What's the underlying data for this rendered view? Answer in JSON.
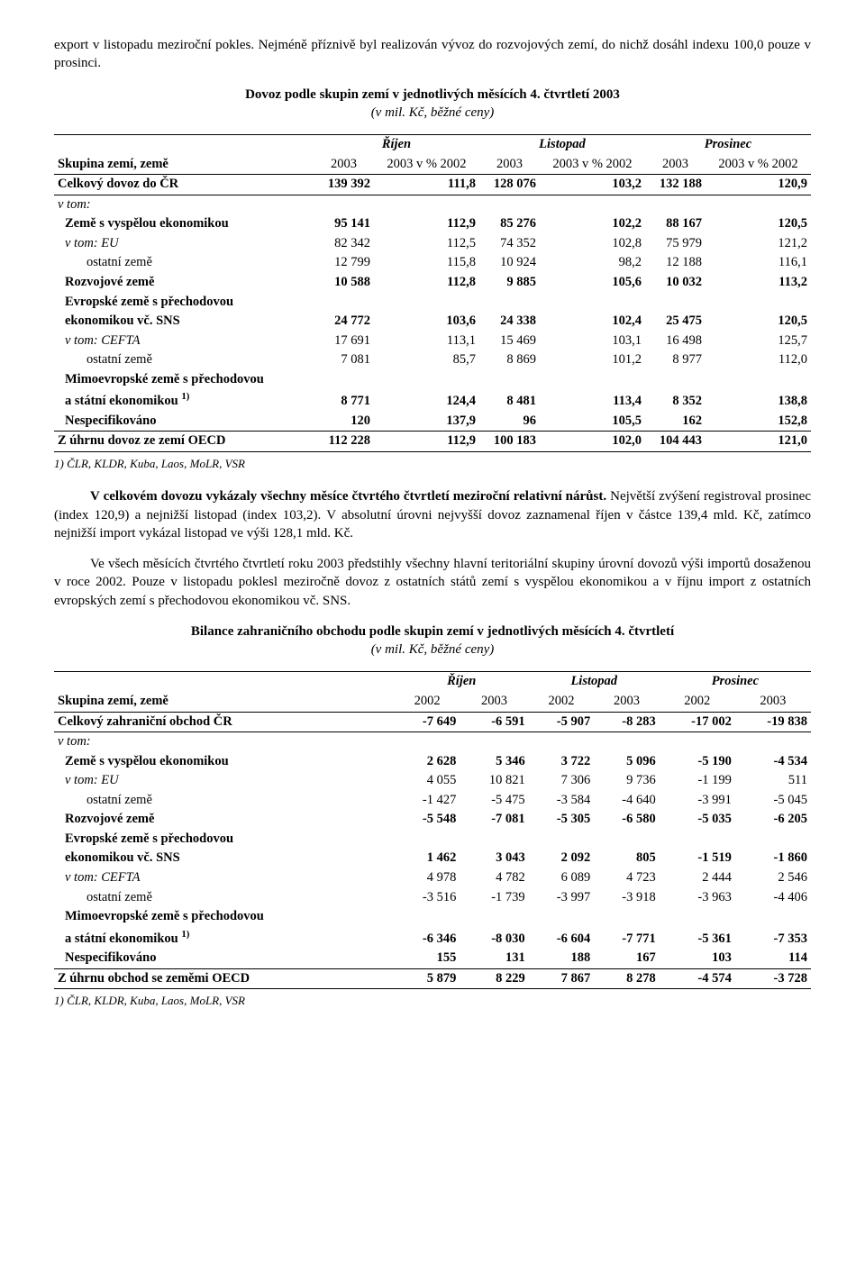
{
  "p1": "export v listopadu meziroční pokles. Nejméně příznivě byl realizován vývoz do rozvojových zemí, do nichž dosáhl indexu 100,0 pouze v prosinci.",
  "t1_title": "Dovoz podle skupin zemí v jednotlivých měsících 4. čtvrtletí 2003",
  "units_note": "(v mil. Kč, běžné ceny)",
  "months": {
    "oct": "Říjen",
    "nov": "Listopad",
    "dec": "Prosinec"
  },
  "colhead": {
    "group": "Skupina zemí, země",
    "y": "2003",
    "pct": "2003 v % 2002",
    "y2002": "2002"
  },
  "t1": {
    "total": {
      "label": "Celkový dovoz do ČR",
      "oct_v": "139 392",
      "oct_p": "111,8",
      "nov_v": "128 076",
      "nov_p": "103,2",
      "dec_v": "132 188",
      "dec_p": "120,9"
    },
    "vtom": "v tom:",
    "vysp": {
      "label": "Země s vyspělou ekonomikou",
      "oct_v": "95 141",
      "oct_p": "112,9",
      "nov_v": "85 276",
      "nov_p": "102,2",
      "dec_v": "88 167",
      "dec_p": "120,5"
    },
    "eu": {
      "label": "v tom: EU",
      "oct_v": "82 342",
      "oct_p": "112,5",
      "nov_v": "74 352",
      "nov_p": "102,8",
      "dec_v": "75 979",
      "dec_p": "121,2"
    },
    "ost1": {
      "label": "ostatní země",
      "oct_v": "12 799",
      "oct_p": "115,8",
      "nov_v": "10 924",
      "nov_p": "98,2",
      "dec_v": "12 188",
      "dec_p": "116,1"
    },
    "rozv": {
      "label": "Rozvojové země",
      "oct_v": "10 588",
      "oct_p": "112,8",
      "nov_v": "9 885",
      "nov_p": "105,6",
      "dec_v": "10 032",
      "dec_p": "113,2"
    },
    "evr_l1": "Evropské země s přechodovou",
    "evr": {
      "label": "ekonomikou vč. SNS",
      "oct_v": "24 772",
      "oct_p": "103,6",
      "nov_v": "24 338",
      "nov_p": "102,4",
      "dec_v": "25 475",
      "dec_p": "120,5"
    },
    "cefta": {
      "label": "v tom: CEFTA",
      "oct_v": "17 691",
      "oct_p": "113,1",
      "nov_v": "15 469",
      "nov_p": "103,1",
      "dec_v": "16 498",
      "dec_p": "125,7"
    },
    "ost2": {
      "label": "ostatní země",
      "oct_v": "7 081",
      "oct_p": "85,7",
      "nov_v": "8 869",
      "nov_p": "101,2",
      "dec_v": "8 977",
      "dec_p": "112,0"
    },
    "mimo_l1": "Mimoevropské země s přechodovou",
    "mimo": {
      "label": "a státní ekonomikou ",
      "sup": "1)",
      "oct_v": "8 771",
      "oct_p": "124,4",
      "nov_v": "8 481",
      "nov_p": "113,4",
      "dec_v": "8 352",
      "dec_p": "138,8"
    },
    "nespec": {
      "label": "Nespecifikováno",
      "oct_v": "120",
      "oct_p": "137,9",
      "nov_v": "96",
      "nov_p": "105,5",
      "dec_v": "162",
      "dec_p": "152,8"
    },
    "oecd": {
      "label": "Z úhrnu dovoz ze zemí OECD",
      "oct_v": "112 228",
      "oct_p": "112,9",
      "nov_v": "100 183",
      "nov_p": "102,0",
      "dec_v": "104 443",
      "dec_p": "121,0"
    }
  },
  "footnote1": "1) ČLR, KLDR, Kuba, Laos, MoLR, VSR",
  "p2a": "V celkovém dovozu vykázaly všechny měsíce čtvrtého čtvrtletí meziroční relativní nárůst.",
  "p2b": " Největší zvýšení registroval prosinec (index 120,9) a nejnižší listopad (index 103,2). V absolutní úrovni nejvyšší dovoz zaznamenal říjen v částce 139,4 mld. Kč, zatímco nejnižší import vykázal listopad ve výši 128,1 mld. Kč.",
  "p3": "Ve všech měsících čtvrtého čtvrtletí roku 2003 předstihly všechny hlavní teritoriální skupiny úrovní dovozů výši importů dosaženou v roce 2002. Pouze v listopadu poklesl meziročně dovoz z ostatních států zemí s vyspělou ekonomikou a v říjnu import z ostatních evropských zemí s přechodovou ekonomikou vč. SNS.",
  "t2_title": "Bilance zahraničního obchodu podle skupin zemí v jednotlivých měsících 4. čtvrtletí",
  "t2": {
    "total": {
      "label": "Celkový zahraniční obchod ČR",
      "o02": "-7 649",
      "o03": "-6 591",
      "n02": "-5 907",
      "n03": "-8 283",
      "d02": "-17 002",
      "d03": "-19 838"
    },
    "vysp": {
      "label": "Země s vyspělou ekonomikou",
      "o02": "2 628",
      "o03": "5 346",
      "n02": "3 722",
      "n03": "5 096",
      "d02": "-5 190",
      "d03": "-4 534"
    },
    "eu": {
      "label": "v tom: EU",
      "o02": "4 055",
      "o03": "10 821",
      "n02": "7 306",
      "n03": "9 736",
      "d02": "-1 199",
      "d03": "511"
    },
    "ost1": {
      "label": "ostatní země",
      "o02": "-1 427",
      "o03": "-5 475",
      "n02": "-3 584",
      "n03": "-4 640",
      "d02": "-3 991",
      "d03": "-5 045"
    },
    "rozv": {
      "label": "Rozvojové země",
      "o02": "-5 548",
      "o03": "-7 081",
      "n02": "-5 305",
      "n03": "-6 580",
      "d02": "-5 035",
      "d03": "-6 205"
    },
    "evr": {
      "label": "ekonomikou vč. SNS",
      "o02": "1 462",
      "o03": "3 043",
      "n02": "2 092",
      "n03": "805",
      "d02": "-1 519",
      "d03": "-1 860"
    },
    "cefta": {
      "label": "v tom: CEFTA",
      "o02": "4 978",
      "o03": "4 782",
      "n02": "6 089",
      "n03": "4 723",
      "d02": "2 444",
      "d03": "2 546"
    },
    "ost2": {
      "label": "ostatní země",
      "o02": "-3 516",
      "o03": "-1 739",
      "n02": "-3 997",
      "n03": "-3 918",
      "d02": "-3 963",
      "d03": "-4 406"
    },
    "mimo": {
      "label": "a státní ekonomikou ",
      "sup": "1)",
      "o02": "-6 346",
      "o03": "-8 030",
      "n02": "-6 604",
      "n03": "-7 771",
      "d02": "-5 361",
      "d03": "-7 353"
    },
    "nespec": {
      "label": "Nespecifikováno",
      "o02": "155",
      "o03": "131",
      "n02": "188",
      "n03": "167",
      "d02": "103",
      "d03": "114"
    },
    "oecd": {
      "label": "Z úhrnu obchod se zeměmi OECD",
      "o02": "5 879",
      "o03": "8 229",
      "n02": "7 867",
      "n03": "8 278",
      "d02": "-4 574",
      "d03": "-3 728"
    }
  }
}
